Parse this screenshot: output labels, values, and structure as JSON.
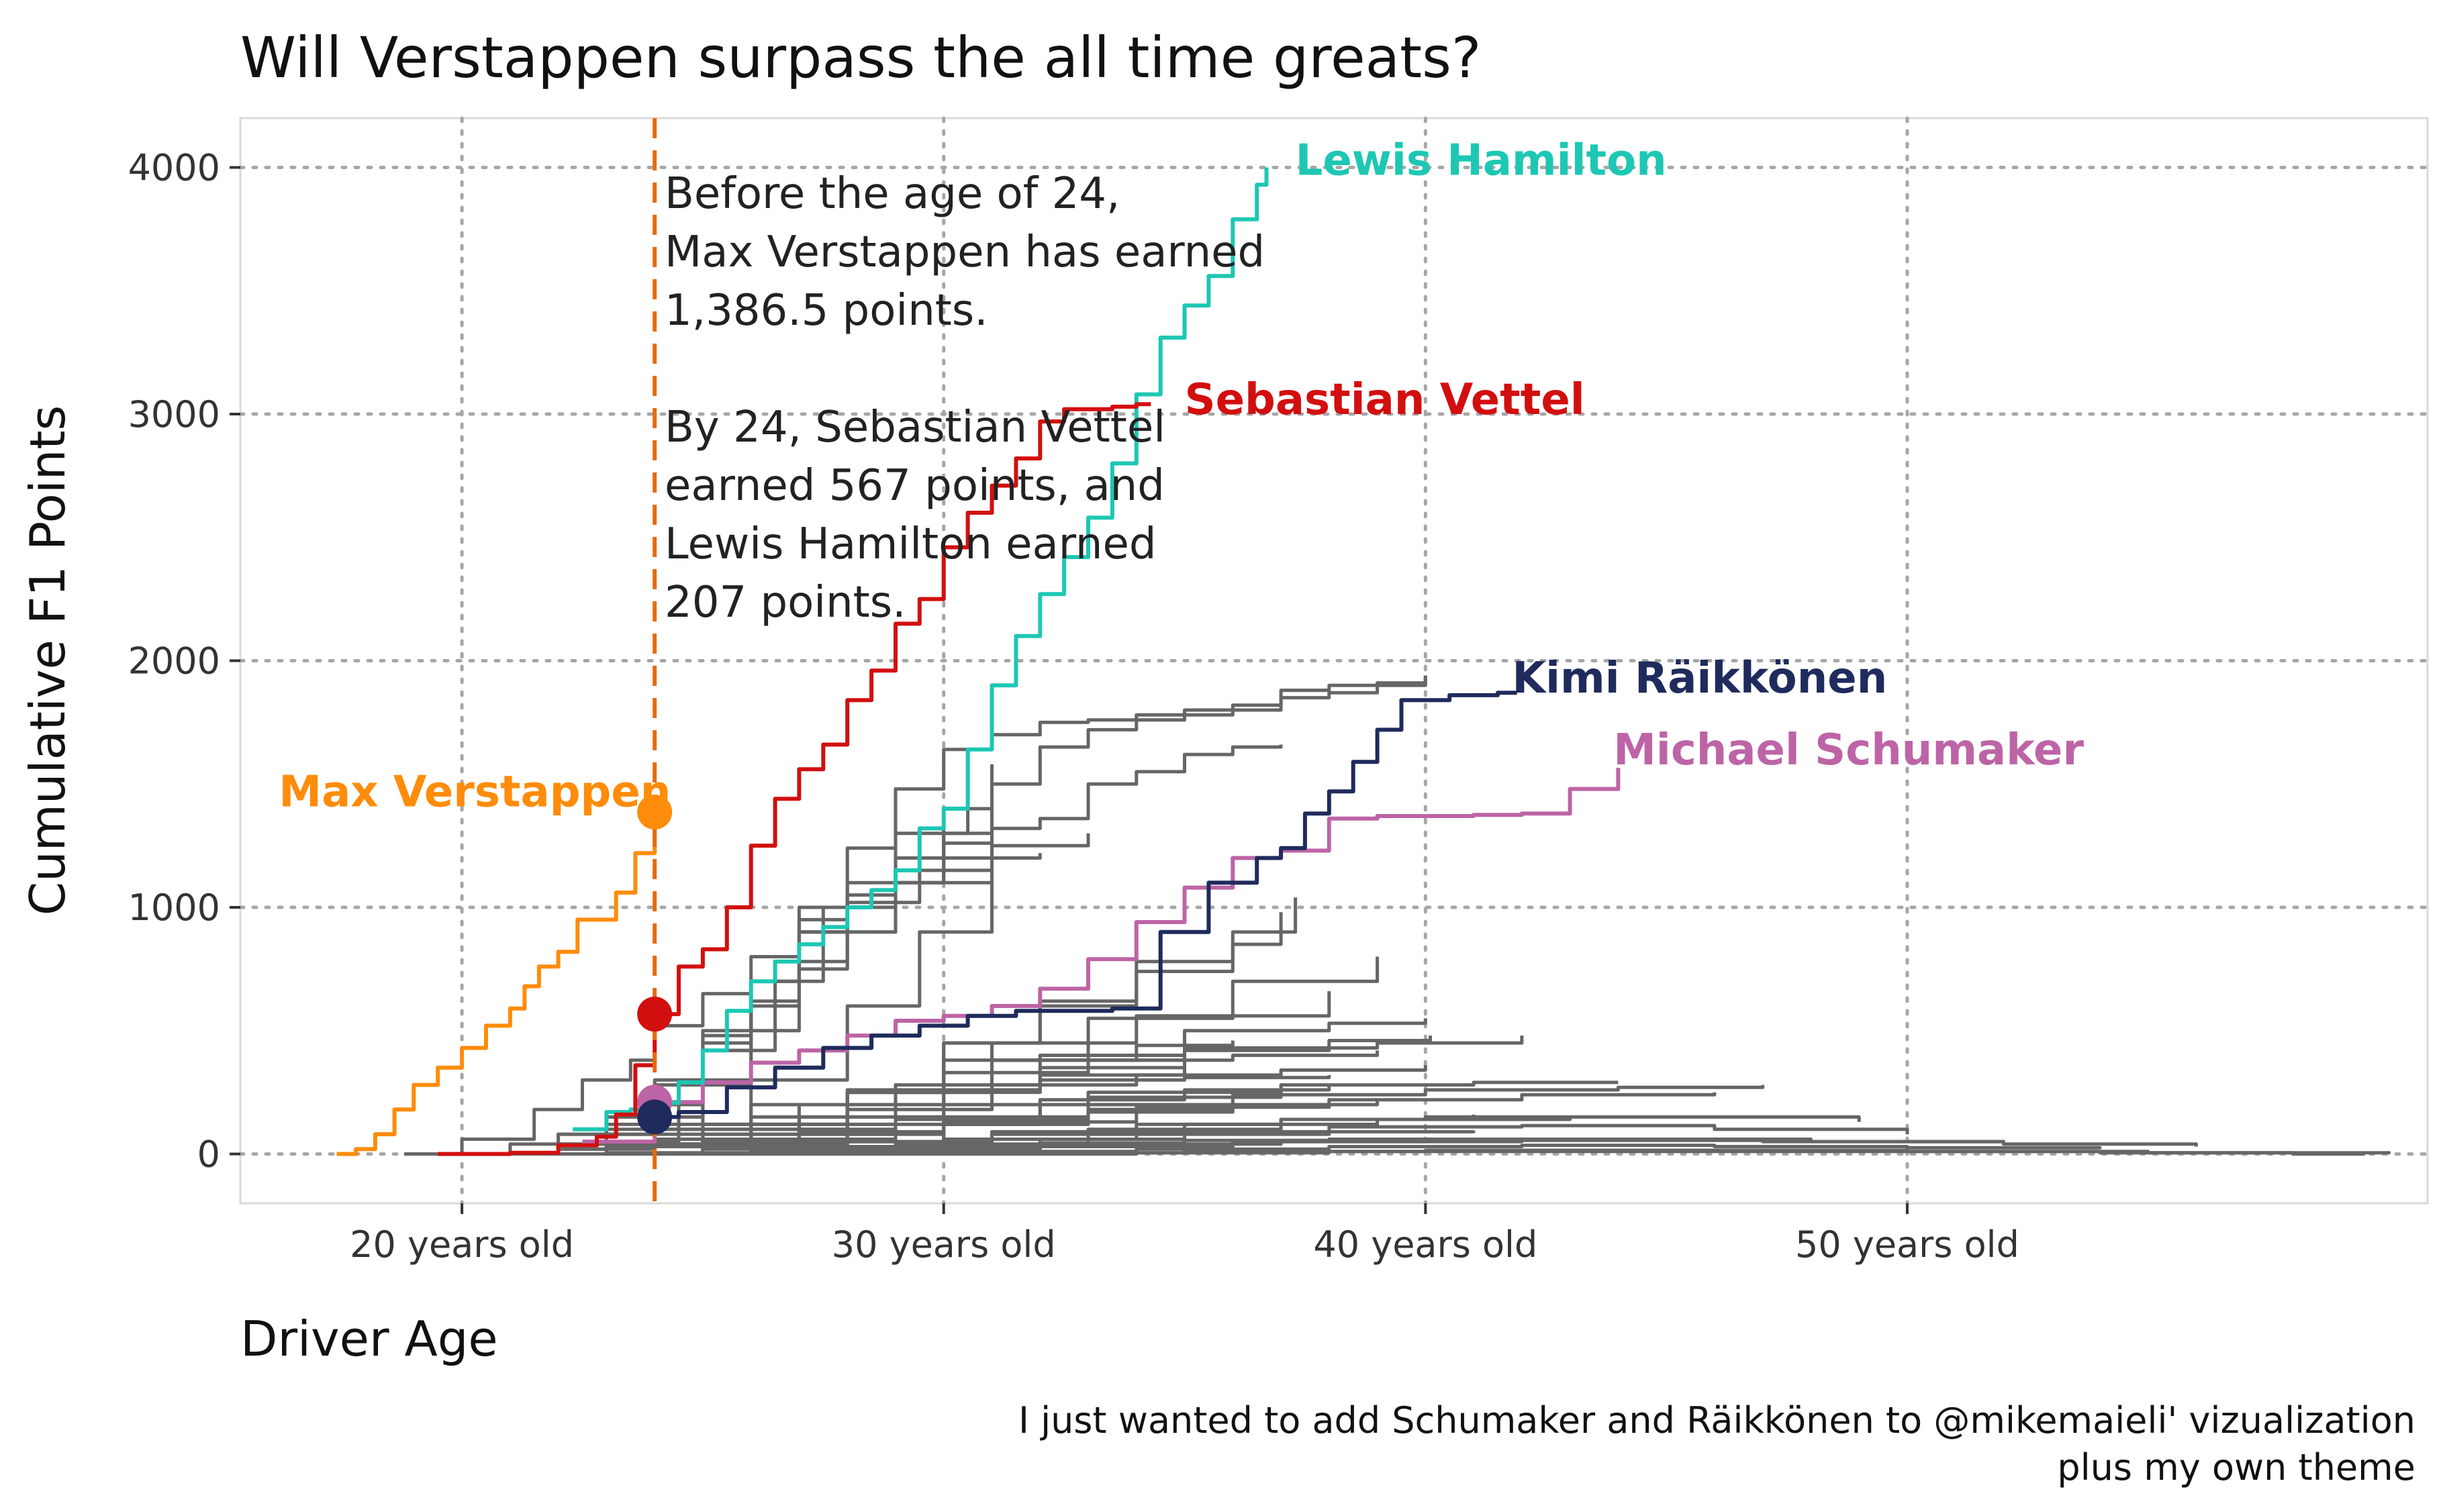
{
  "chart_data": {
    "type": "line",
    "title": "Will Verstappen surpass the all time greats?",
    "xlabel": "Driver Age",
    "ylabel": "Cumulative F1 Points",
    "x_ticks": [
      20,
      30,
      40,
      50
    ],
    "x_tick_labels": [
      "20 years old",
      "30 years old",
      "40 years old",
      "50 years old"
    ],
    "y_ticks": [
      0,
      1000,
      2000,
      3000,
      4000
    ],
    "y_tick_labels": [
      "0",
      "1000",
      "2000",
      "3000",
      "4000"
    ],
    "xlim": [
      15.4,
      60.8
    ],
    "ylim": [
      -200,
      4200
    ],
    "grid": true,
    "reference_line": {
      "x": 24,
      "color": "#E66B0F"
    },
    "annotation": [
      "Before the age of 24,",
      "Max Verstappen has earned",
      "1,386.5 points.",
      "",
      "By 24, Sebastian Vettel",
      "earned 567 points, and",
      "Lewis Hamilton earned",
      "207 points."
    ],
    "caption": [
      "I just wanted to add Schumaker and Räikkönen to @mikemaieli' vizualization",
      "plus my own theme"
    ],
    "highlighted_series": [
      {
        "name": "Max Verstappen",
        "color": "#FF8C0A",
        "label_x": 16.2,
        "label_y": 1470,
        "x": [
          17.4,
          17.8,
          18.2,
          18.6,
          19,
          19.5,
          20,
          20.5,
          21,
          21.3,
          21.6,
          22,
          22.4,
          22.8,
          23.2,
          23.6,
          24
        ],
        "y": [
          0,
          20,
          80,
          180,
          280,
          350,
          430,
          520,
          590,
          680,
          760,
          820,
          950,
          950,
          1060,
          1220,
          1386.5
        ]
      },
      {
        "name": "Sebastian Vettel",
        "color": "#D20F0F",
        "label_x": 35,
        "label_y": 3060,
        "x": [
          19.5,
          21,
          22,
          22.8,
          23.2,
          23.6,
          24,
          24.5,
          25,
          25.5,
          26,
          26.5,
          27,
          27.5,
          28,
          28.5,
          29,
          29.5,
          30,
          30.5,
          31,
          31.5,
          32,
          32.5,
          33,
          33.5,
          34,
          34.3
        ],
        "y": [
          0,
          5,
          35,
          70,
          160,
          360,
          567,
          760,
          830,
          1000,
          1250,
          1440,
          1560,
          1660,
          1840,
          1960,
          2150,
          2250,
          2460,
          2600,
          2710,
          2820,
          2970,
          3020,
          3020,
          3030,
          3040,
          3040
        ]
      },
      {
        "name": "Lewis Hamilton",
        "color": "#1DC7B3",
        "label_x": 37.3,
        "label_y": 4030,
        "x": [
          22.3,
          23,
          23.5,
          24,
          24.5,
          25,
          25.5,
          26,
          26.5,
          27,
          27.5,
          28,
          28.5,
          29,
          29.5,
          30,
          30.5,
          31,
          31.5,
          32,
          32.5,
          33,
          33.5,
          34,
          34.5,
          35,
          35.5,
          36,
          36.5,
          36.7
        ],
        "y": [
          100,
          170,
          180,
          207,
          290,
          420,
          580,
          700,
          780,
          850,
          920,
          1000,
          1070,
          1150,
          1320,
          1400,
          1640,
          1900,
          2100,
          2270,
          2420,
          2580,
          2800,
          3080,
          3310,
          3440,
          3560,
          3790,
          3930,
          4000
        ]
      },
      {
        "name": "Kimi Räikkönen",
        "color": "#1F2B5C",
        "label_x": 41.8,
        "label_y": 1930,
        "x": [
          23.8,
          24.5,
          25.5,
          26.5,
          27.5,
          28.5,
          29.5,
          30.5,
          31.5,
          32.5,
          33.5,
          34.5,
          35.5,
          36.5,
          37,
          37.5,
          38,
          38.5,
          39,
          39.5,
          40.5,
          41.5,
          41.9
        ],
        "y": [
          150,
          170,
          270,
          350,
          430,
          480,
          520,
          560,
          580,
          580,
          590,
          900,
          1100,
          1200,
          1240,
          1380,
          1470,
          1590,
          1720,
          1840,
          1860,
          1870,
          1870
        ]
      },
      {
        "name": "Michael Schumaker",
        "color": "#BD64A6",
        "label_x": 43.9,
        "label_y": 1640,
        "x": [
          22.5,
          24,
          25,
          26,
          27,
          28,
          29,
          30,
          31,
          32,
          33,
          34,
          35,
          36,
          37,
          38,
          39,
          40,
          41,
          42,
          43,
          44
        ],
        "y": [
          50,
          210,
          290,
          370,
          420,
          480,
          540,
          560,
          600,
          670,
          790,
          940,
          1080,
          1200,
          1230,
          1360,
          1370,
          1370,
          1375,
          1380,
          1480,
          1566
        ]
      }
    ],
    "markers_at_24": [
      {
        "name": "Max Verstappen",
        "color": "#FF8C0A",
        "y": 1386.5
      },
      {
        "name": "Sebastian Vettel",
        "color": "#D20F0F",
        "y": 567
      },
      {
        "name": "Michael Schumaker",
        "color": "#BD64A6",
        "y": 210
      },
      {
        "name": "Kimi Räikkönen",
        "color": "#1F2B5C",
        "y": 150
      }
    ],
    "other_drivers_color": "#666666",
    "other_drivers": [
      {
        "x": [
          20.5,
          22,
          23,
          24,
          25,
          26,
          27,
          28,
          29,
          30,
          31,
          32,
          33,
          34,
          35,
          36,
          37,
          38,
          39,
          40
        ],
        "y": [
          0,
          20,
          80,
          200,
          420,
          700,
          900,
          1050,
          1150,
          1300,
          1500,
          1650,
          1720,
          1760,
          1780,
          1800,
          1850,
          1870,
          1900,
          1940
        ]
      },
      {
        "x": [
          21,
          23,
          24.5,
          26,
          27,
          28,
          29,
          30,
          31,
          32,
          33,
          34,
          35,
          36,
          37,
          38,
          39,
          40
        ],
        "y": [
          0,
          50,
          300,
          600,
          1000,
          1240,
          1480,
          1640,
          1700,
          1750,
          1760,
          1780,
          1800,
          1820,
          1880,
          1900,
          1910,
          1940
        ]
      },
      {
        "x": [
          20,
          22,
          24,
          25,
          26,
          27,
          28,
          29,
          30,
          31,
          32,
          33,
          34,
          35,
          36,
          37
        ],
        "y": [
          0,
          80,
          300,
          480,
          620,
          750,
          900,
          1100,
          1260,
          1320,
          1360,
          1500,
          1550,
          1620,
          1650,
          1660
        ]
      },
      {
        "x": [
          19,
          21,
          23,
          25,
          26,
          27,
          28,
          29,
          30,
          31,
          32
        ],
        "y": [
          0,
          40,
          150,
          450,
          700,
          900,
          1000,
          1100,
          1150,
          1200,
          1220
        ]
      },
      {
        "x": [
          18.8,
          20,
          21.5,
          22.5,
          23.5,
          24,
          25,
          26,
          27,
          28,
          29,
          30,
          31
        ],
        "y": [
          0,
          60,
          180,
          300,
          380,
          520,
          650,
          800,
          950,
          1100,
          1200,
          1400,
          1580
        ]
      },
      {
        "x": [
          20,
          22,
          24,
          26,
          27.5,
          29,
          30.5
        ],
        "y": [
          0,
          80,
          280,
          700,
          1000,
          1300,
          1540
        ]
      },
      {
        "x": [
          21,
          23,
          25,
          26.5,
          28,
          29.5,
          31
        ],
        "y": [
          0,
          120,
          420,
          780,
          1020,
          1200,
          1450
        ]
      },
      {
        "x": [
          22,
          24,
          26,
          28,
          29.5,
          31
        ],
        "y": [
          0,
          100,
          300,
          600,
          900,
          1200
        ]
      },
      {
        "x": [
          21,
          23,
          25,
          27,
          29,
          31,
          33
        ],
        "y": [
          0,
          150,
          500,
          900,
          1100,
          1250,
          1300
        ]
      },
      {
        "x": [
          20,
          22,
          24,
          26,
          28,
          30,
          32,
          34,
          36,
          37.3
        ],
        "y": [
          0,
          20,
          60,
          120,
          250,
          450,
          620,
          780,
          900,
          1040
        ]
      },
      {
        "x": [
          22,
          24,
          26,
          28,
          30,
          32,
          34,
          36,
          37
        ],
        "y": [
          0,
          30,
          100,
          250,
          450,
          600,
          740,
          850,
          980
        ]
      },
      {
        "x": [
          21,
          24,
          27,
          30,
          33,
          36,
          39
        ],
        "y": [
          0,
          40,
          150,
          380,
          550,
          700,
          800
        ]
      },
      {
        "x": [
          22,
          25,
          28,
          31,
          34,
          38
        ],
        "y": [
          0,
          60,
          250,
          450,
          560,
          660
        ]
      },
      {
        "x": [
          20,
          23,
          26,
          29,
          32,
          35,
          38,
          40.1
        ],
        "y": [
          0,
          30,
          120,
          260,
          350,
          420,
          460,
          480
        ]
      },
      {
        "x": [
          19,
          22,
          25,
          28,
          31,
          35,
          39,
          42
        ],
        "y": [
          0,
          40,
          120,
          250,
          380,
          430,
          450,
          480
        ]
      },
      {
        "x": [
          23,
          26,
          29,
          32,
          35,
          38,
          40
        ],
        "y": [
          0,
          100,
          250,
          400,
          500,
          530,
          550
        ]
      },
      {
        "x": [
          21,
          24,
          27,
          30,
          33,
          36,
          39
        ],
        "y": [
          0,
          80,
          200,
          330,
          380,
          400,
          420
        ]
      },
      {
        "x": [
          22,
          25,
          28,
          31,
          34,
          37,
          40
        ],
        "y": [
          0,
          50,
          180,
          280,
          320,
          340,
          360
        ]
      },
      {
        "x": [
          20,
          24,
          28,
          32,
          36,
          40,
          44,
          47
        ],
        "y": [
          0,
          40,
          120,
          200,
          240,
          260,
          270,
          280
        ]
      },
      {
        "x": [
          21,
          25,
          29,
          33,
          37,
          41,
          44
        ],
        "y": [
          0,
          60,
          150,
          230,
          280,
          290,
          290
        ]
      },
      {
        "x": [
          22,
          26,
          30,
          34,
          38,
          42,
          46
        ],
        "y": [
          0,
          50,
          130,
          190,
          220,
          240,
          250
        ]
      },
      {
        "x": [
          20,
          23,
          26,
          29,
          32,
          35,
          38
        ],
        "y": [
          0,
          100,
          200,
          280,
          300,
          310,
          320
        ]
      },
      {
        "x": [
          23,
          27,
          31,
          35,
          39,
          43,
          47,
          49
        ],
        "y": [
          0,
          30,
          80,
          120,
          140,
          150,
          150,
          130
        ]
      },
      {
        "x": [
          22,
          26,
          30,
          34,
          38,
          42,
          46,
          50
        ],
        "y": [
          0,
          20,
          60,
          90,
          110,
          115,
          100,
          80
        ]
      },
      {
        "x": [
          21,
          25,
          29,
          33,
          37
        ],
        "y": [
          0,
          80,
          200,
          250,
          260
        ]
      },
      {
        "x": [
          22,
          25,
          28,
          31,
          34,
          36
        ],
        "y": [
          0,
          120,
          260,
          380,
          440,
          460
        ]
      },
      {
        "x": [
          20,
          23,
          26,
          29,
          32,
          35
        ],
        "y": [
          0,
          40,
          150,
          260,
          320,
          350
        ]
      },
      {
        "x": [
          23,
          26,
          29,
          32,
          35,
          38
        ],
        "y": [
          0,
          60,
          140,
          220,
          260,
          280
        ]
      },
      {
        "x": [
          21,
          24,
          27,
          30,
          33,
          36,
          39
        ],
        "y": [
          0,
          30,
          80,
          140,
          180,
          200,
          210
        ]
      },
      {
        "x": [
          22,
          25,
          28,
          31,
          34,
          37,
          40,
          43
        ],
        "y": [
          0,
          20,
          50,
          90,
          120,
          140,
          150,
          155
        ]
      },
      {
        "x": [
          24,
          28,
          32,
          36,
          40,
          44,
          48,
          52
        ],
        "y": [
          0,
          10,
          30,
          50,
          60,
          60,
          50,
          40
        ]
      },
      {
        "x": [
          26,
          30,
          34,
          38,
          42,
          46,
          50,
          54
        ],
        "y": [
          0,
          10,
          20,
          30,
          35,
          30,
          25,
          20
        ]
      },
      {
        "x": [
          30,
          34,
          38,
          42,
          46,
          50,
          54,
          58,
          59.5
        ],
        "y": [
          0,
          5,
          10,
          10,
          10,
          10,
          5,
          0,
          0
        ]
      },
      {
        "x": [
          25,
          29,
          33,
          37,
          41
        ],
        "y": [
          0,
          40,
          100,
          140,
          160
        ]
      },
      {
        "x": [
          24,
          27,
          30,
          33,
          36,
          39
        ],
        "y": [
          0,
          50,
          120,
          170,
          200,
          220
        ]
      },
      {
        "x": [
          21,
          24,
          27,
          30,
          33
        ],
        "y": [
          0,
          30,
          90,
          130,
          150
        ]
      },
      {
        "x": [
          23,
          26,
          29,
          32,
          35,
          38,
          41
        ],
        "y": [
          0,
          10,
          30,
          60,
          80,
          90,
          95
        ]
      },
      {
        "x": [
          20,
          23,
          26,
          29,
          32,
          35,
          38,
          41,
          44,
          47
        ],
        "y": [
          0,
          5,
          15,
          30,
          45,
          55,
          60,
          60,
          60,
          55
        ]
      },
      {
        "x": [
          25,
          30,
          35,
          40,
          45,
          50,
          55,
          60
        ],
        "y": [
          0,
          5,
          10,
          15,
          15,
          10,
          5,
          0
        ]
      },
      {
        "x": [
          22,
          27,
          32,
          37,
          42,
          47,
          52,
          56
        ],
        "y": [
          0,
          20,
          40,
          50,
          55,
          50,
          40,
          30
        ]
      }
    ]
  }
}
